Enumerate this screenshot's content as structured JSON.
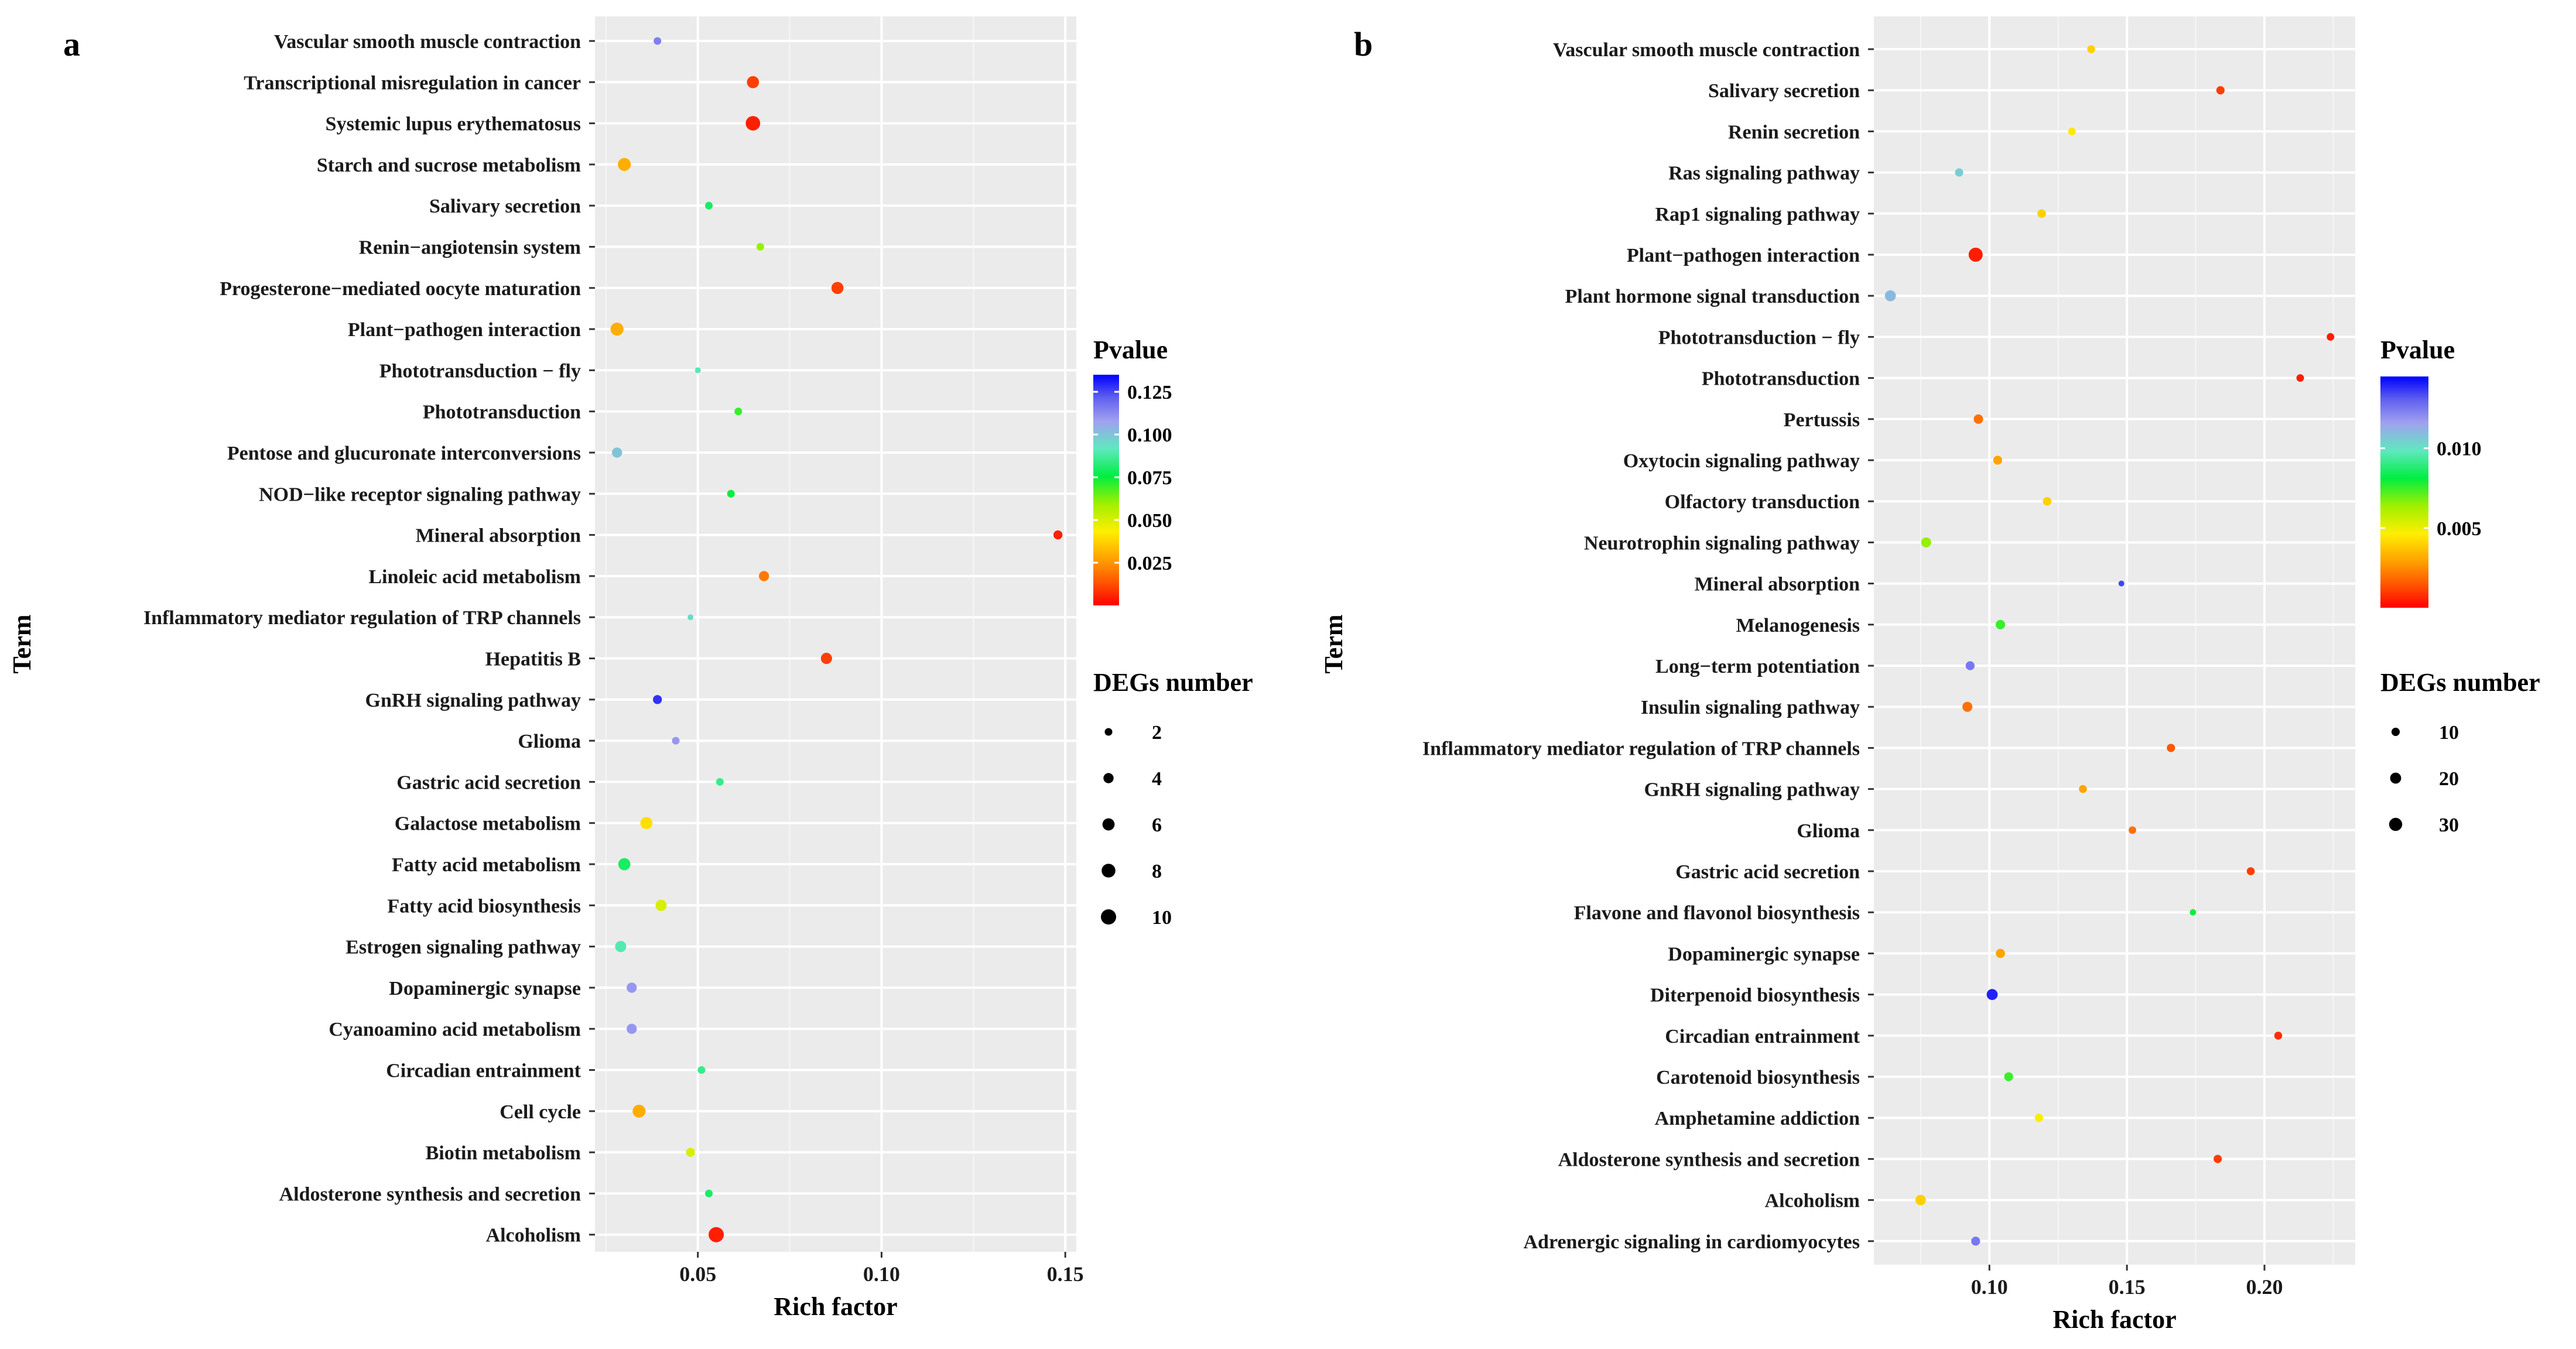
{
  "chart_data": [
    {
      "type": "scatter",
      "panel_label": "a",
      "xlabel": "Rich factor",
      "ylabel": "Term",
      "xlim": [
        0.022,
        0.153
      ],
      "xticks": [
        0.05,
        0.1,
        0.15
      ],
      "xtick_labels": [
        "0.05",
        "0.10",
        "0.15"
      ],
      "grid": true,
      "legend_position": "right",
      "color_legend": {
        "title": "Pvalue",
        "range": [
          0,
          0.135
        ],
        "ticks": [
          0.025,
          0.05,
          0.075,
          0.1,
          0.125
        ],
        "tick_labels": [
          "0.025",
          "0.050",
          "0.075",
          "0.100",
          "0.125"
        ]
      },
      "size_legend": {
        "title": "DEGs number",
        "values": [
          2,
          4,
          6,
          8,
          10
        ],
        "labels": [
          "2",
          "4",
          "6",
          "8",
          "10"
        ]
      },
      "points": [
        {
          "term": "Vascular smooth muscle contraction",
          "rich_factor": 0.039,
          "pvalue": 0.115,
          "degs": 2
        },
        {
          "term": "Transcriptional misregulation in cancer",
          "rich_factor": 0.065,
          "pvalue": 0.01,
          "degs": 6
        },
        {
          "term": "Systemic lupus erythematosus",
          "rich_factor": 0.065,
          "pvalue": 0.005,
          "degs": 9
        },
        {
          "term": "Starch and sucrose metabolism",
          "rich_factor": 0.03,
          "pvalue": 0.03,
          "degs": 7
        },
        {
          "term": "Salivary secretion",
          "rich_factor": 0.053,
          "pvalue": 0.08,
          "degs": 2
        },
        {
          "term": "Renin−angiotensin system",
          "rich_factor": 0.067,
          "pvalue": 0.06,
          "degs": 2
        },
        {
          "term": "Progesterone−mediated oocyte maturation",
          "rich_factor": 0.088,
          "pvalue": 0.01,
          "degs": 6
        },
        {
          "term": "Plant−pathogen interaction",
          "rich_factor": 0.028,
          "pvalue": 0.03,
          "degs": 7
        },
        {
          "term": "Phototransduction − fly",
          "rich_factor": 0.05,
          "pvalue": 0.09,
          "degs": 1
        },
        {
          "term": "Phototransduction",
          "rich_factor": 0.061,
          "pvalue": 0.07,
          "degs": 2
        },
        {
          "term": "Pentose and glucuronate interconversions",
          "rich_factor": 0.028,
          "pvalue": 0.1,
          "degs": 4
        },
        {
          "term": "NOD−like receptor signaling pathway",
          "rich_factor": 0.059,
          "pvalue": 0.075,
          "degs": 2
        },
        {
          "term": "Mineral absorption",
          "rich_factor": 0.148,
          "pvalue": 0.005,
          "degs": 3
        },
        {
          "term": "Linoleic acid metabolism",
          "rich_factor": 0.068,
          "pvalue": 0.02,
          "degs": 4
        },
        {
          "term": "Inflammatory mediator regulation of TRP channels",
          "rich_factor": 0.048,
          "pvalue": 0.095,
          "degs": 1
        },
        {
          "term": "Hepatitis B",
          "rich_factor": 0.085,
          "pvalue": 0.01,
          "degs": 5
        },
        {
          "term": "GnRH signaling pathway",
          "rich_factor": 0.039,
          "pvalue": 0.128,
          "degs": 3
        },
        {
          "term": "Glioma",
          "rich_factor": 0.044,
          "pvalue": 0.11,
          "degs": 2
        },
        {
          "term": "Gastric acid secretion",
          "rich_factor": 0.056,
          "pvalue": 0.085,
          "degs": 2
        },
        {
          "term": "Galactose metabolism",
          "rich_factor": 0.036,
          "pvalue": 0.04,
          "degs": 6
        },
        {
          "term": "Fatty acid metabolism",
          "rich_factor": 0.03,
          "pvalue": 0.08,
          "degs": 6
        },
        {
          "term": "Fatty acid biosynthesis",
          "rich_factor": 0.04,
          "pvalue": 0.05,
          "degs": 5
        },
        {
          "term": "Estrogen signaling pathway",
          "rich_factor": 0.029,
          "pvalue": 0.09,
          "degs": 5
        },
        {
          "term": "Dopaminergic synapse",
          "rich_factor": 0.032,
          "pvalue": 0.11,
          "degs": 4
        },
        {
          "term": "Cyanoamino acid metabolism",
          "rich_factor": 0.032,
          "pvalue": 0.11,
          "degs": 4
        },
        {
          "term": "Circadian entrainment",
          "rich_factor": 0.051,
          "pvalue": 0.085,
          "degs": 2
        },
        {
          "term": "Cell cycle",
          "rich_factor": 0.034,
          "pvalue": 0.03,
          "degs": 7
        },
        {
          "term": "Biotin metabolism",
          "rich_factor": 0.048,
          "pvalue": 0.05,
          "degs": 3
        },
        {
          "term": "Aldosterone synthesis and secretion",
          "rich_factor": 0.053,
          "pvalue": 0.08,
          "degs": 2
        },
        {
          "term": "Alcoholism",
          "rich_factor": 0.055,
          "pvalue": 0.005,
          "degs": 10
        }
      ]
    },
    {
      "type": "scatter",
      "panel_label": "b",
      "xlabel": "Rich factor",
      "ylabel": "Term",
      "xlim": [
        0.058,
        0.233
      ],
      "xticks": [
        0.1,
        0.15,
        0.2
      ],
      "xtick_labels": [
        "0.10",
        "0.15",
        "0.20"
      ],
      "grid": true,
      "legend_position": "right",
      "color_legend": {
        "title": "Pvalue",
        "range": [
          0,
          0.0145
        ],
        "ticks": [
          0.005,
          0.01
        ],
        "tick_labels": [
          "0.005",
          "0.010"
        ]
      },
      "size_legend": {
        "title": "DEGs number",
        "values": [
          10,
          20,
          30
        ],
        "labels": [
          "10",
          "20",
          "30"
        ]
      },
      "points": [
        {
          "term": "Vascular smooth muscle contraction",
          "rich_factor": 0.137,
          "pvalue": 0.004,
          "degs": 9
        },
        {
          "term": "Salivary secretion",
          "rich_factor": 0.184,
          "pvalue": 0.001,
          "degs": 10
        },
        {
          "term": "Renin secretion",
          "rich_factor": 0.13,
          "pvalue": 0.0045,
          "degs": 8
        },
        {
          "term": "Ras signaling pathway",
          "rich_factor": 0.089,
          "pvalue": 0.0105,
          "degs": 10
        },
        {
          "term": "Rap1 signaling pathway",
          "rich_factor": 0.119,
          "pvalue": 0.004,
          "degs": 11
        },
        {
          "term": "Plant−pathogen interaction",
          "rich_factor": 0.095,
          "pvalue": 0.0005,
          "degs": 35
        },
        {
          "term": "Plant hormone signal transduction",
          "rich_factor": 0.064,
          "pvalue": 0.011,
          "degs": 20
        },
        {
          "term": "Phototransduction − fly",
          "rich_factor": 0.224,
          "pvalue": 0.0005,
          "degs": 8
        },
        {
          "term": "Phototransduction",
          "rich_factor": 0.213,
          "pvalue": 0.0005,
          "degs": 8
        },
        {
          "term": "Pertussis",
          "rich_factor": 0.096,
          "pvalue": 0.002,
          "degs": 14
        },
        {
          "term": "Oxytocin signaling pathway",
          "rich_factor": 0.103,
          "pvalue": 0.003,
          "degs": 12
        },
        {
          "term": "Olfactory transduction",
          "rich_factor": 0.121,
          "pvalue": 0.004,
          "degs": 11
        },
        {
          "term": "Neurotrophin signaling pathway",
          "rich_factor": 0.077,
          "pvalue": 0.0065,
          "degs": 16
        },
        {
          "term": "Mineral absorption",
          "rich_factor": 0.148,
          "pvalue": 0.0135,
          "degs": 4
        },
        {
          "term": "Melanogenesis",
          "rich_factor": 0.104,
          "pvalue": 0.0075,
          "degs": 14
        },
        {
          "term": "Long−term potentiation",
          "rich_factor": 0.093,
          "pvalue": 0.0125,
          "degs": 12
        },
        {
          "term": "Insulin signaling pathway",
          "rich_factor": 0.092,
          "pvalue": 0.002,
          "degs": 16
        },
        {
          "term": "Inflammatory mediator regulation of TRP channels",
          "rich_factor": 0.166,
          "pvalue": 0.0015,
          "degs": 10
        },
        {
          "term": "GnRH signaling pathway",
          "rich_factor": 0.134,
          "pvalue": 0.003,
          "degs": 9
        },
        {
          "term": "Glioma",
          "rich_factor": 0.152,
          "pvalue": 0.002,
          "degs": 8
        },
        {
          "term": "Gastric acid secretion",
          "rich_factor": 0.195,
          "pvalue": 0.001,
          "degs": 9
        },
        {
          "term": "Flavone and flavonol biosynthesis",
          "rich_factor": 0.174,
          "pvalue": 0.008,
          "degs": 5
        },
        {
          "term": "Dopaminergic synapse",
          "rich_factor": 0.104,
          "pvalue": 0.003,
          "degs": 13
        },
        {
          "term": "Diterpenoid biosynthesis",
          "rich_factor": 0.101,
          "pvalue": 0.014,
          "degs": 20
        },
        {
          "term": "Circadian entrainment",
          "rich_factor": 0.205,
          "pvalue": 0.0008,
          "degs": 9
        },
        {
          "term": "Carotenoid biosynthesis",
          "rich_factor": 0.107,
          "pvalue": 0.0075,
          "degs": 12
        },
        {
          "term": "Amphetamine addiction",
          "rich_factor": 0.118,
          "pvalue": 0.0048,
          "degs": 10
        },
        {
          "term": "Aldosterone synthesis and secretion",
          "rich_factor": 0.183,
          "pvalue": 0.001,
          "degs": 10
        },
        {
          "term": "Alcoholism",
          "rich_factor": 0.075,
          "pvalue": 0.004,
          "degs": 18
        },
        {
          "term": "Adrenergic signaling in cardiomyocytes",
          "rich_factor": 0.095,
          "pvalue": 0.0125,
          "degs": 12
        }
      ]
    }
  ]
}
